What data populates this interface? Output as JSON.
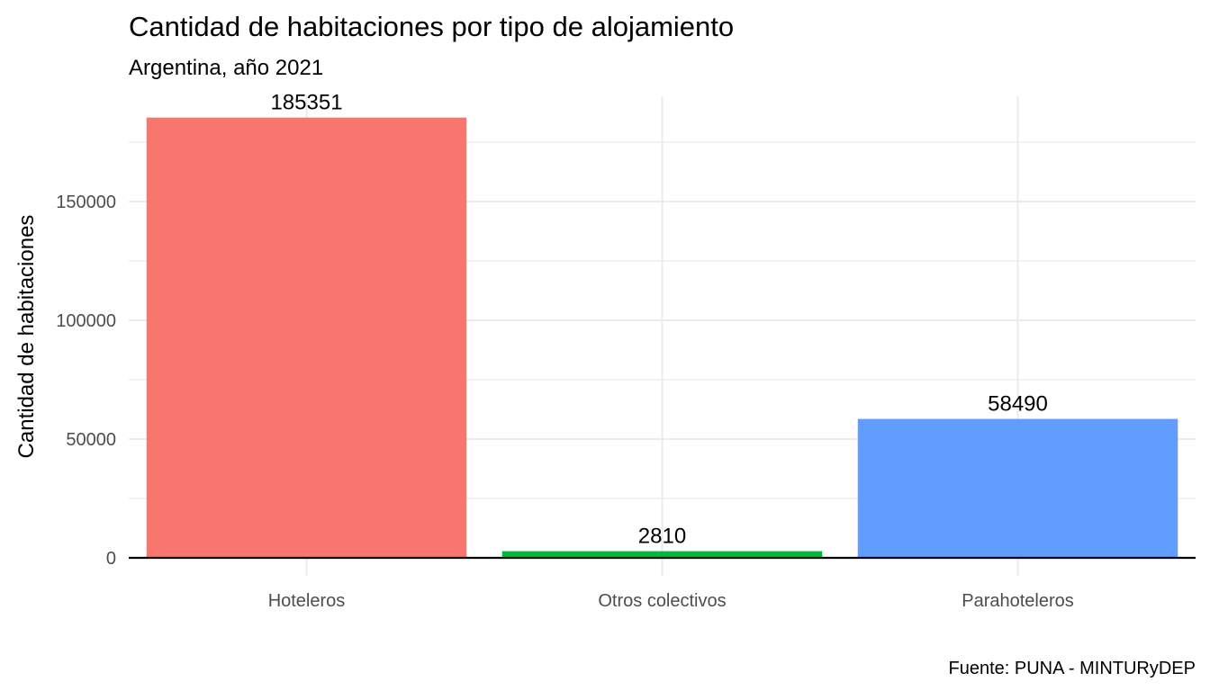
{
  "chart_data": {
    "type": "bar",
    "title": "Cantidad de habitaciones por tipo de alojamiento",
    "subtitle": "Argentina, año 2021",
    "xlabel": "",
    "ylabel": "Cantidad de habitaciones",
    "caption": "Fuente: PUNA - MINTURyDEP",
    "categories": [
      "Hoteleros",
      "Otros colectivos",
      "Parahoteleros"
    ],
    "values": [
      185351,
      2810,
      58490
    ],
    "data_labels": [
      "185351",
      "2810",
      "58490"
    ],
    "colors": [
      "#F8766D",
      "#00BA38",
      "#619CFF"
    ],
    "yticks": [
      0,
      50000,
      100000,
      150000
    ],
    "ytick_labels": [
      "0",
      "50000",
      "100000",
      "150000"
    ],
    "ylim": [
      0,
      185351
    ],
    "grid": true,
    "legend": "none"
  }
}
